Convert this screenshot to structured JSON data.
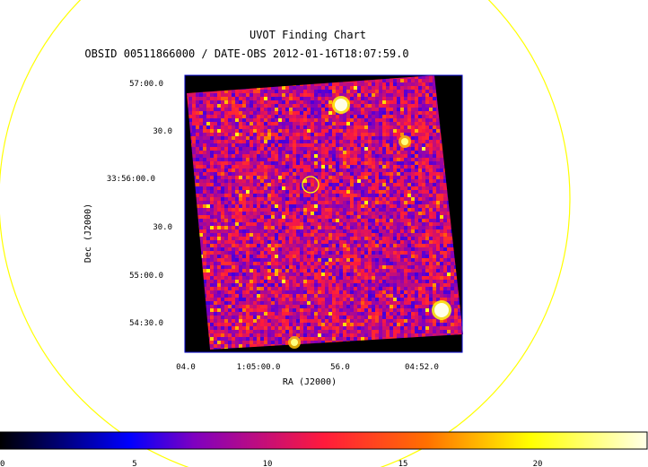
{
  "chart_data": {
    "type": "heatmap",
    "title": "UVOT Finding Chart",
    "subtitle": "OBSID 00511866000 / DATE-OBS 2012-01-16T18:07:59.0",
    "xlabel": "RA (J2000)",
    "ylabel": "Dec (J2000)",
    "x_ticks": [
      "04.0",
      "1:05:00.0",
      "56.0",
      "04:52.0"
    ],
    "y_ticks": [
      "57:00.0",
      "30.0",
      "33:56:00.0",
      "30.0",
      "55:00.0",
      "54:30.0"
    ],
    "colorbar": {
      "ticks": [
        "0",
        "5",
        "10",
        "15",
        "20"
      ],
      "range": [
        0,
        24
      ],
      "colormap": [
        "#000000",
        "#0000ff",
        "#7f00c0",
        "#ff1a3c",
        "#ff7000",
        "#ffff00",
        "#ffffe8"
      ]
    },
    "bright_sources": [
      {
        "label": "source near top",
        "value": 24
      },
      {
        "label": "source upper right",
        "value": 22
      },
      {
        "label": "source lower right",
        "value": 24
      },
      {
        "label": "source bottom",
        "value": 22
      }
    ],
    "target_marker_color": "#ffff00",
    "field_circle_color": "#ffff00",
    "frame_color": "#0000cc"
  }
}
